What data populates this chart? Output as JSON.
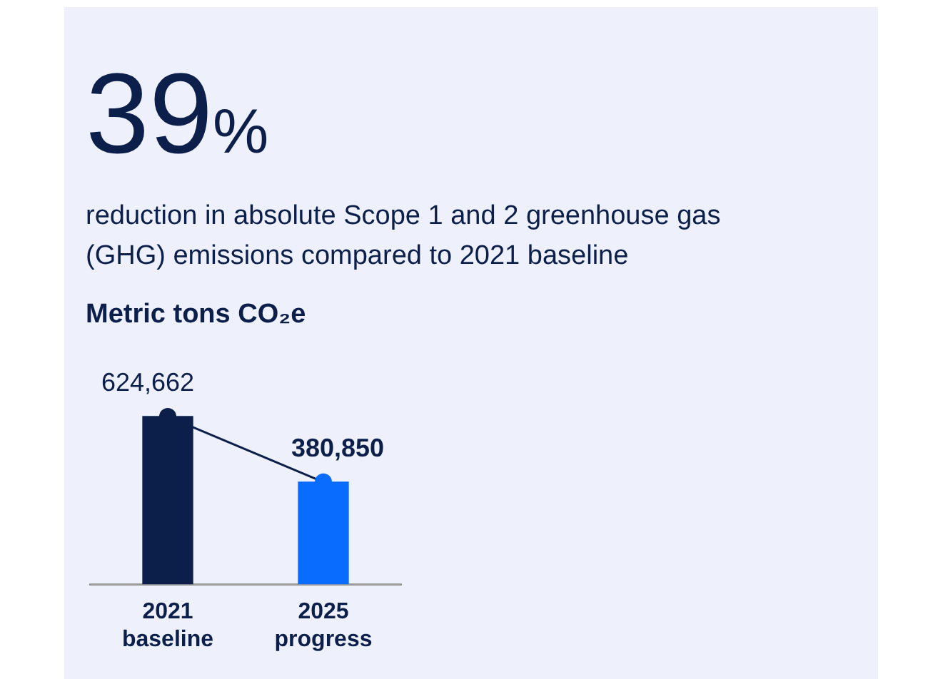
{
  "chart_data": {
    "type": "bar",
    "title": "39%",
    "subtitle": "reduction in absolute Scope 1 and 2 greenhouse gas (GHG) emissions compared to 2021 baseline",
    "ylabel": "Metric tons CO₂e",
    "categories": [
      "2021 baseline",
      "2025 progress"
    ],
    "series": [
      {
        "colors": [
          "#0b1f4a",
          "#0a6cff"
        ],
        "values": [
          624662,
          380850
        ],
        "value_labels": [
          "624,662",
          "380,850"
        ]
      },
      {
        "type": "line",
        "color": "#0b1f4a",
        "colors": [
          "#0b1f4a",
          "#0a6cff"
        ],
        "values": [
          624662,
          380850
        ],
        "marker": "circle"
      }
    ],
    "grid": false,
    "legend": false
  }
}
